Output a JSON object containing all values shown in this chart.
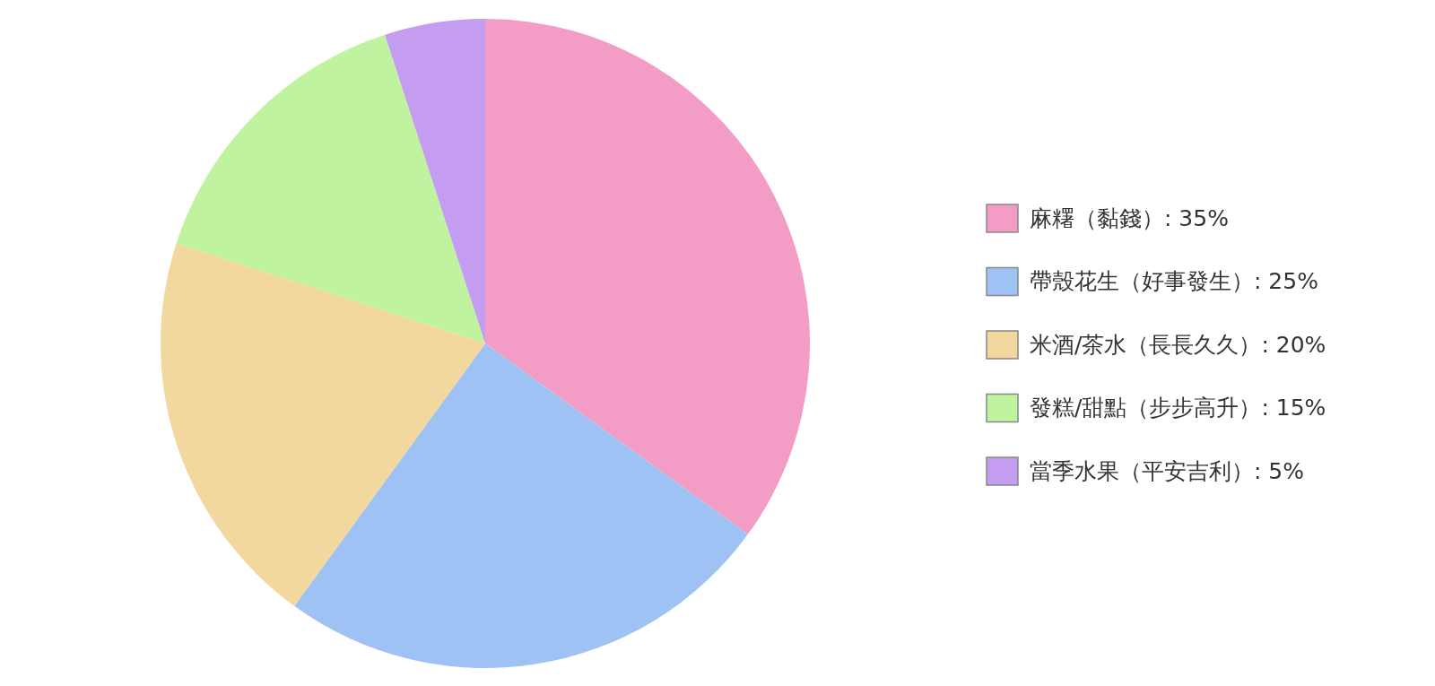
{
  "chart_data": {
    "type": "pie",
    "categories": [
      "麻糬（黏錢）: 35%",
      "帶殼花生（好事發生）: 25%",
      "米酒/茶水（長長久久）: 20%",
      "發糕/甜點（步步高升）: 15%",
      "當季水果（平安吉利）: 5%"
    ],
    "values": [
      35,
      25,
      20,
      15,
      5
    ],
    "colors": [
      "#f29cc6",
      "#9fc2f4",
      "#f2d79e",
      "#c0f39f",
      "#c49cf0"
    ],
    "legend": "right"
  }
}
